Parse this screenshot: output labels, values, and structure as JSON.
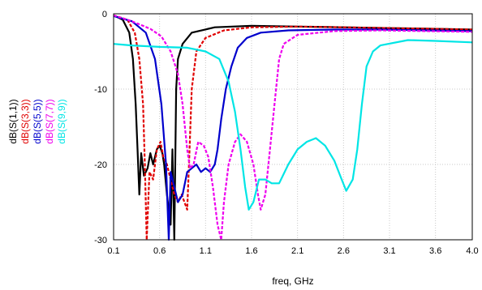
{
  "chart_data": {
    "type": "line",
    "title": "",
    "xlabel": "freq, GHz",
    "ylabel": "",
    "xlim": [
      0.1,
      4.0
    ],
    "ylim": [
      -30,
      0
    ],
    "grid": true,
    "legend": "left-vertical",
    "x_ticks": [
      "0.1",
      "0.6",
      "1.1",
      "1.6",
      "2.1",
      "2.6",
      "3.1",
      "3.6",
      "4.0"
    ],
    "y_ticks": [
      "0",
      "-10",
      "-20",
      "-30"
    ],
    "series": [
      {
        "name": "dB(S(1,1))",
        "color": "#000000",
        "style": "solid",
        "points": [
          [
            0.1,
            -0.2
          ],
          [
            0.2,
            -0.8
          ],
          [
            0.27,
            -2.5
          ],
          [
            0.31,
            -6
          ],
          [
            0.34,
            -12
          ],
          [
            0.36,
            -18
          ],
          [
            0.38,
            -24
          ],
          [
            0.4,
            -18.5
          ],
          [
            0.43,
            -21.5
          ],
          [
            0.47,
            -20.5
          ],
          [
            0.5,
            -18.5
          ],
          [
            0.53,
            -20
          ],
          [
            0.57,
            -18
          ],
          [
            0.6,
            -17.5
          ],
          [
            0.63,
            -18.5
          ],
          [
            0.65,
            -20
          ],
          [
            0.68,
            -24
          ],
          [
            0.72,
            -28
          ],
          [
            0.74,
            -18
          ],
          [
            0.76,
            -30
          ],
          [
            0.78,
            -10
          ],
          [
            0.8,
            -6
          ],
          [
            0.85,
            -4
          ],
          [
            0.95,
            -2.5
          ],
          [
            1.2,
            -1.8
          ],
          [
            1.6,
            -1.6
          ],
          [
            2.1,
            -1.7
          ],
          [
            2.6,
            -1.8
          ],
          [
            3.1,
            -1.9
          ],
          [
            3.6,
            -2.0
          ],
          [
            4.0,
            -2.1
          ]
        ]
      },
      {
        "name": "dB(S(3,3))",
        "color": "#e00000",
        "style": "dashed",
        "points": [
          [
            0.1,
            -0.2
          ],
          [
            0.25,
            -0.8
          ],
          [
            0.33,
            -2.5
          ],
          [
            0.38,
            -6
          ],
          [
            0.42,
            -12
          ],
          [
            0.44,
            -20
          ],
          [
            0.46,
            -30
          ],
          [
            0.49,
            -21
          ],
          [
            0.53,
            -22
          ],
          [
            0.57,
            -18
          ],
          [
            0.61,
            -17
          ],
          [
            0.64,
            -19
          ],
          [
            0.68,
            -20
          ],
          [
            0.72,
            -22
          ],
          [
            0.76,
            -24
          ],
          [
            0.8,
            -25
          ],
          [
            0.84,
            -24
          ],
          [
            0.87,
            -25
          ],
          [
            0.9,
            -26
          ],
          [
            0.92,
            -20
          ],
          [
            0.95,
            -10
          ],
          [
            1.0,
            -5
          ],
          [
            1.1,
            -3.2
          ],
          [
            1.3,
            -2.2
          ],
          [
            1.6,
            -1.8
          ],
          [
            2.1,
            -1.7
          ],
          [
            2.6,
            -1.8
          ],
          [
            3.1,
            -1.9
          ],
          [
            3.6,
            -2.0
          ],
          [
            4.0,
            -2.1
          ]
        ]
      },
      {
        "name": "dB(S(5,5))",
        "color": "#0000cc",
        "style": "solid",
        "points": [
          [
            0.1,
            -0.3
          ],
          [
            0.3,
            -1
          ],
          [
            0.45,
            -2.5
          ],
          [
            0.55,
            -6
          ],
          [
            0.62,
            -12
          ],
          [
            0.67,
            -20
          ],
          [
            0.7,
            -30
          ],
          [
            0.72,
            -21
          ],
          [
            0.75,
            -22.5
          ],
          [
            0.8,
            -25
          ],
          [
            0.85,
            -24
          ],
          [
            0.9,
            -21
          ],
          [
            0.95,
            -20.5
          ],
          [
            1.0,
            -20
          ],
          [
            1.05,
            -21
          ],
          [
            1.1,
            -20.5
          ],
          [
            1.15,
            -21
          ],
          [
            1.2,
            -20
          ],
          [
            1.23,
            -18
          ],
          [
            1.27,
            -14
          ],
          [
            1.32,
            -10
          ],
          [
            1.38,
            -7
          ],
          [
            1.45,
            -4.5
          ],
          [
            1.55,
            -3.2
          ],
          [
            1.7,
            -2.5
          ],
          [
            2.0,
            -2.2
          ],
          [
            2.5,
            -2.1
          ],
          [
            3.0,
            -2.1
          ],
          [
            3.5,
            -2.2
          ],
          [
            4.0,
            -2.3
          ]
        ]
      },
      {
        "name": "dB(S(7,7))",
        "color": "#ee00ee",
        "style": "dashed",
        "points": [
          [
            0.1,
            -0.2
          ],
          [
            0.3,
            -1
          ],
          [
            0.5,
            -2
          ],
          [
            0.62,
            -3
          ],
          [
            0.72,
            -5
          ],
          [
            0.8,
            -8
          ],
          [
            0.85,
            -12
          ],
          [
            0.9,
            -18
          ],
          [
            0.93,
            -20.5
          ],
          [
            0.97,
            -20
          ],
          [
            1.02,
            -17
          ],
          [
            1.08,
            -17.5
          ],
          [
            1.13,
            -19
          ],
          [
            1.18,
            -23
          ],
          [
            1.23,
            -28
          ],
          [
            1.27,
            -30
          ],
          [
            1.3,
            -25
          ],
          [
            1.35,
            -20
          ],
          [
            1.42,
            -17
          ],
          [
            1.48,
            -16
          ],
          [
            1.55,
            -17
          ],
          [
            1.62,
            -20
          ],
          [
            1.67,
            -24
          ],
          [
            1.7,
            -26
          ],
          [
            1.75,
            -24
          ],
          [
            1.8,
            -18
          ],
          [
            1.85,
            -12
          ],
          [
            1.9,
            -6
          ],
          [
            1.95,
            -4
          ],
          [
            2.1,
            -2.8
          ],
          [
            2.5,
            -2.3
          ],
          [
            3.0,
            -2.2
          ],
          [
            3.5,
            -2.3
          ],
          [
            4.0,
            -2.4
          ]
        ]
      },
      {
        "name": "dB(S(9,9))",
        "color": "#00e5e5",
        "style": "solid",
        "points": [
          [
            0.1,
            -4
          ],
          [
            0.3,
            -4.2
          ],
          [
            0.6,
            -4.4
          ],
          [
            0.9,
            -4.5
          ],
          [
            1.1,
            -5
          ],
          [
            1.25,
            -6
          ],
          [
            1.35,
            -9
          ],
          [
            1.42,
            -13
          ],
          [
            1.48,
            -18
          ],
          [
            1.53,
            -23
          ],
          [
            1.57,
            -26
          ],
          [
            1.62,
            -25
          ],
          [
            1.68,
            -22
          ],
          [
            1.75,
            -22
          ],
          [
            1.82,
            -22.5
          ],
          [
            1.9,
            -22.5
          ],
          [
            2.0,
            -20
          ],
          [
            2.1,
            -18
          ],
          [
            2.2,
            -17
          ],
          [
            2.3,
            -16.5
          ],
          [
            2.4,
            -17.5
          ],
          [
            2.5,
            -19.5
          ],
          [
            2.58,
            -22
          ],
          [
            2.63,
            -23.5
          ],
          [
            2.7,
            -22
          ],
          [
            2.75,
            -18
          ],
          [
            2.8,
            -12
          ],
          [
            2.85,
            -7
          ],
          [
            2.92,
            -5
          ],
          [
            3.0,
            -4.2
          ],
          [
            3.3,
            -3.5
          ],
          [
            3.6,
            -3.6
          ],
          [
            4.0,
            -3.8
          ]
        ]
      }
    ]
  }
}
